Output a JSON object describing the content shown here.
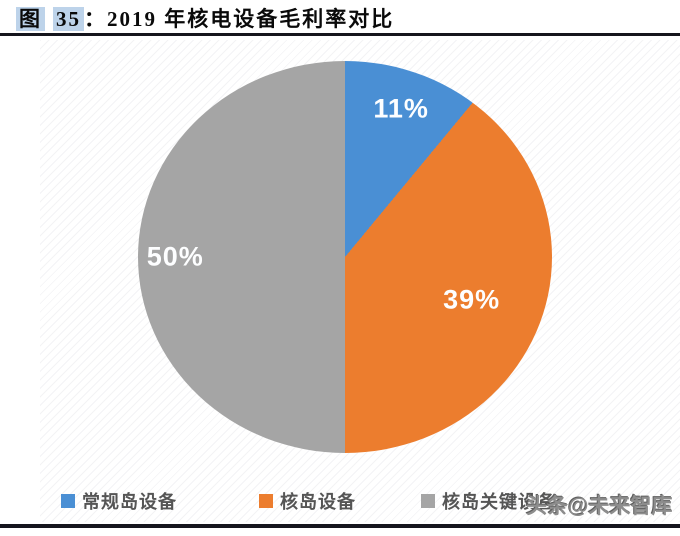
{
  "title": {
    "fig_prefix": "图",
    "fig_number": "35",
    "colon": "：",
    "text": "2019 年核电设备毛利率对比"
  },
  "watermark": "头条@未来智库",
  "chart_data": {
    "type": "pie",
    "title": "2019 年核电设备毛利率对比",
    "categories": [
      "常规岛设备",
      "核岛设备",
      "核岛关键设备"
    ],
    "values": [
      11,
      39,
      50
    ],
    "unit": "%",
    "slices": [
      {
        "label": "常规岛设备",
        "value": 11,
        "display": "11%",
        "color": "#4a8fd4"
      },
      {
        "label": "核岛设备",
        "value": 39,
        "display": "39%",
        "color": "#ec7d2e"
      },
      {
        "label": "核岛关键设备",
        "value": 50,
        "display": "50%",
        "color": "#a5a5a5"
      }
    ],
    "start_angle_deg": 0,
    "direction": "clockwise",
    "legend_position": "bottom",
    "data_label_color": "#ffffff"
  }
}
